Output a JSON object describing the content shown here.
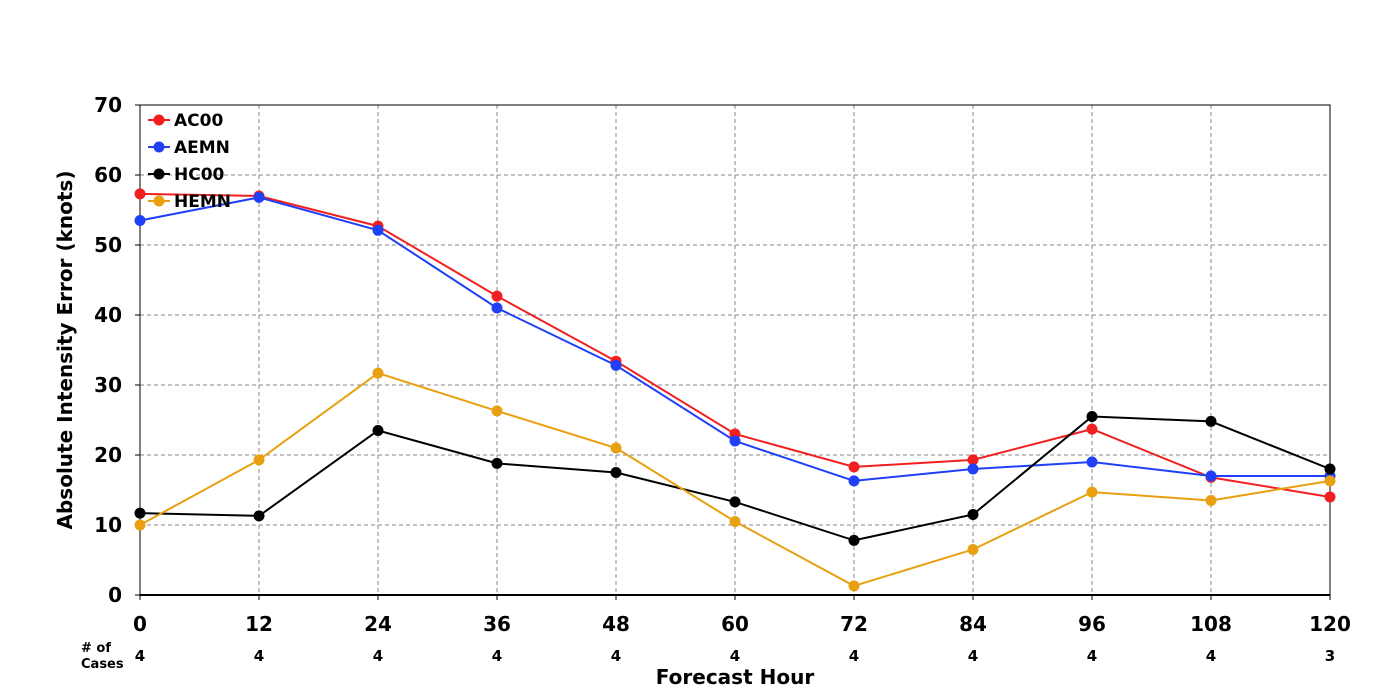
{
  "chart_data": {
    "type": "line",
    "title": "",
    "xlabel": "Forecast Hour",
    "ylabel": "Absolute Intensity Error (knots)",
    "x": [
      0,
      12,
      24,
      36,
      48,
      60,
      72,
      84,
      96,
      108,
      120
    ],
    "xlim": [
      0,
      120
    ],
    "ylim": [
      0,
      70
    ],
    "yticks": [
      0,
      10,
      20,
      30,
      40,
      50,
      60,
      70
    ],
    "grid": true,
    "legend_position": "top-left",
    "cases_label_line1": "# of",
    "cases_label_line2": "Cases",
    "cases": [
      "4",
      "4",
      "4",
      "4",
      "4",
      "4",
      "4",
      "4",
      "4",
      "4",
      "3"
    ],
    "series": [
      {
        "name": "AC00",
        "color": "#f02020",
        "values": [
          57.3,
          57.0,
          52.7,
          42.7,
          33.4,
          23.0,
          18.3,
          19.3,
          23.7,
          16.8,
          14.0
        ]
      },
      {
        "name": "AEMN",
        "color": "#2040f8",
        "values": [
          53.5,
          56.8,
          52.1,
          41.0,
          32.8,
          22.0,
          16.3,
          18.0,
          19.0,
          17.0,
          17.0
        ]
      },
      {
        "name": "HC00",
        "color": "#000000",
        "values": [
          11.7,
          11.3,
          23.5,
          18.8,
          17.5,
          13.3,
          7.8,
          11.5,
          25.5,
          24.8,
          18.0
        ]
      },
      {
        "name": "HEMN",
        "color": "#e8a010",
        "values": [
          10.0,
          19.3,
          31.7,
          26.3,
          21.0,
          10.5,
          1.3,
          6.5,
          14.7,
          13.5,
          16.3
        ]
      }
    ]
  }
}
